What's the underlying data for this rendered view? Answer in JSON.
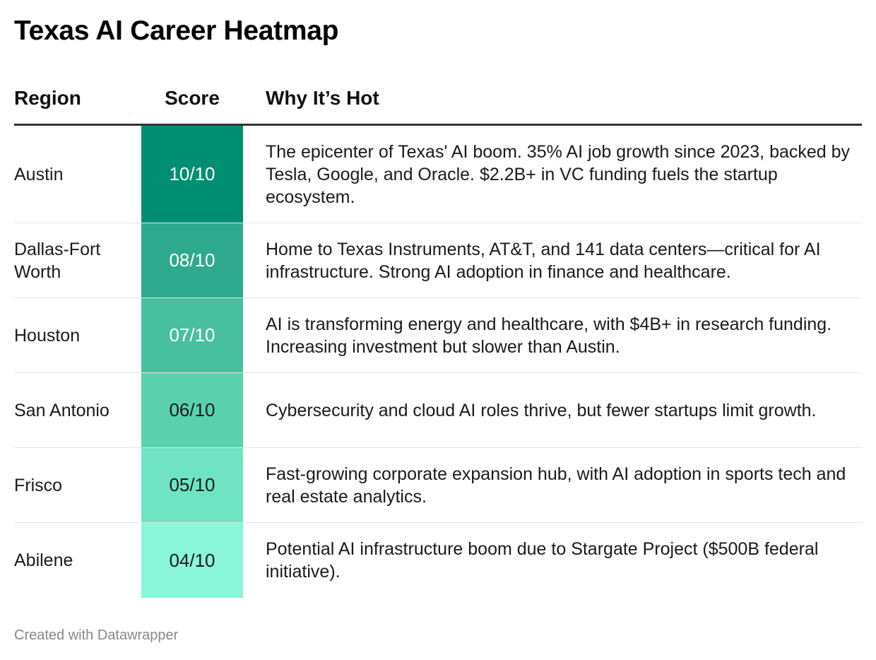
{
  "title": "Texas AI Career Heatmap",
  "footer": "Created with Datawrapper",
  "columns": {
    "region": "Region",
    "score": "Score",
    "why": "Why It’s Hot"
  },
  "chart_data": {
    "type": "table",
    "title": "Texas AI Career Heatmap",
    "columns": [
      "Region",
      "Score",
      "Why It’s Hot"
    ],
    "color_scale": {
      "low": "#89f5d9",
      "high": "#008f72",
      "domain": [
        4,
        10
      ]
    },
    "rows": [
      {
        "region": "Austin",
        "score_label": "10/10",
        "score": 10,
        "why": "The epicenter of Texas' AI boom. 35% AI job growth since 2023, backed by Tesla, Google, and Oracle. $2.2B+ in VC funding fuels the startup ecosystem.",
        "color": "#008f72",
        "text_color": "#ffffff"
      },
      {
        "region": "Dallas-Fort Worth",
        "score_label": "08/10",
        "score": 8,
        "why": "Home to Texas Instruments, AT&T, and 141 data centers—critical for AI infrastructure. Strong AI adoption in finance and healthcare.",
        "color": "#2fa98d",
        "text_color": "#ffffff"
      },
      {
        "region": "Houston",
        "score_label": "07/10",
        "score": 7,
        "why": "AI is transforming energy and healthcare, with $4B+ in research funding. Increasing investment but slower than Austin.",
        "color": "#48bf9f",
        "text_color": "#ffffff"
      },
      {
        "region": "San Antonio",
        "score_label": "06/10",
        "score": 6,
        "why": "Cybersecurity and cloud AI roles thrive, but fewer startups limit growth.",
        "color": "#5bd1ad",
        "text_color": "#1a1a1a"
      },
      {
        "region": "Frisco",
        "score_label": "05/10",
        "score": 5,
        "why": "Fast-growing corporate expansion hub, with AI adoption in sports tech and real estate analytics.",
        "color": "#70e3c3",
        "text_color": "#1a1a1a"
      },
      {
        "region": "Abilene",
        "score_label": "04/10",
        "score": 4,
        "why": "Potential AI infrastructure boom due to Stargate Project ($500B federal initiative).",
        "color": "#89f5d9",
        "text_color": "#1a1a1a"
      }
    ]
  }
}
